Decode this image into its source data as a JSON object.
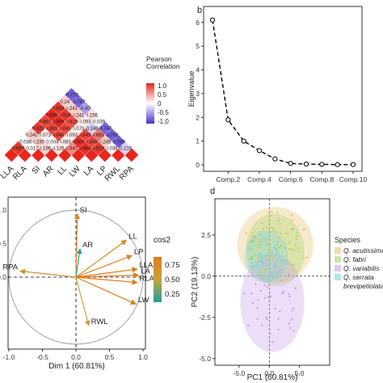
{
  "panel_labels": {
    "b": "b",
    "d": "d"
  },
  "chart_data": [
    {
      "type": "heatmap",
      "variables": [
        "LLA",
        "RLA",
        "SI",
        "AR",
        "LL",
        "LW",
        "LA",
        "LP",
        "RWL",
        "RPA"
      ],
      "legend": {
        "title": "Pearson\nCorrelation",
        "ticks": [
          "1.0",
          "0.5",
          "0",
          "-0.5",
          "-1.0"
        ],
        "colors": {
          "pos": "#e8261c",
          "mid": "#ffffff",
          "neg": "#4a2fd0"
        }
      },
      "cells": [
        {
          "row": "RPA",
          "col": "RWL",
          "label": "-0.219",
          "value": -0.219
        },
        {
          "row": "RPA",
          "col": "LP",
          "label": "-0.789",
          "value": -0.789
        },
        {
          "row": "RPA",
          "col": "LA",
          "label": "-0.762",
          "value": -0.762
        },
        {
          "row": "RPA",
          "col": "LW",
          "label": "-0.747",
          "value": -0.747
        },
        {
          "row": "RPA",
          "col": "LL",
          "label": "-0.039",
          "value": -0.039
        },
        {
          "row": "RPA",
          "col": "AR",
          "label": "0.156",
          "value": 0.156
        },
        {
          "row": "RPA",
          "col": "SI",
          "label": "-0.47",
          "value": -0.47
        },
        {
          "row": "RPA",
          "col": "RLA",
          "label": "-0.747",
          "value": -0.747
        },
        {
          "row": "RPA",
          "col": "LLA",
          "label": "-0.773",
          "value": -0.773
        },
        {
          "row": "RWL",
          "col": "LP",
          "label": "0.038",
          "value": 0.038
        },
        {
          "row": "RWL",
          "col": "LA",
          "label": "0.245",
          "value": 0.245
        },
        {
          "row": "RWL",
          "col": "LW",
          "label": "0.661",
          "value": 0.661
        },
        {
          "row": "RWL",
          "col": "LL",
          "label": "-0.249",
          "value": -0.249
        },
        {
          "row": "RWL",
          "col": "AR",
          "label": "0.093",
          "value": 0.093
        },
        {
          "row": "RWL",
          "col": "SI",
          "label": "0.241",
          "value": 0.241
        },
        {
          "row": "RWL",
          "col": "RLA",
          "label": "0.241",
          "value": 0.241
        },
        {
          "row": "RWL",
          "col": "LLA",
          "label": "0.24",
          "value": 0.24
        },
        {
          "row": "LP",
          "col": "LA",
          "label": "0.919",
          "value": 0.919
        },
        {
          "row": "LP",
          "col": "LW",
          "label": "0.849",
          "value": 0.849
        },
        {
          "row": "LP",
          "col": "LL",
          "label": "0.843",
          "value": 0.843
        },
        {
          "row": "LP",
          "col": "AR",
          "label": "0.073",
          "value": 0.073
        },
        {
          "row": "LP",
          "col": "SI",
          "label": "0.815",
          "value": 0.815
        },
        {
          "row": "LP",
          "col": "RLA",
          "label": "0.919",
          "value": 0.919
        },
        {
          "row": "LP",
          "col": "LLA",
          "label": "0.919",
          "value": 0.919
        },
        {
          "row": "LA",
          "col": "LW",
          "label": "0.964",
          "value": 0.964
        },
        {
          "row": "LA",
          "col": "LL",
          "label": "0.964",
          "value": 0.964
        },
        {
          "row": "LA",
          "col": "AR",
          "label": "0.093",
          "value": 0.093
        },
        {
          "row": "LA",
          "col": "SI",
          "label": "0.843",
          "value": 0.843
        },
        {
          "row": "LA",
          "col": "RLA",
          "label": "0.999",
          "value": 0.999
        },
        {
          "row": "LA",
          "col": "LLA",
          "label": "0.999",
          "value": 0.999
        },
        {
          "row": "LW",
          "col": "LL",
          "label": "0.547",
          "value": 0.547
        },
        {
          "row": "LW",
          "col": "AR",
          "label": "0.083",
          "value": 0.083
        },
        {
          "row": "LW",
          "col": "SI",
          "label": "0.845",
          "value": 0.845
        },
        {
          "row": "LW",
          "col": "RLA",
          "label": "0.861",
          "value": 0.861
        },
        {
          "row": "LW",
          "col": "LLA",
          "label": "0.861",
          "value": 0.861
        },
        {
          "row": "LL",
          "col": "AR",
          "label": "0.126",
          "value": 0.126
        },
        {
          "row": "LL",
          "col": "SI",
          "label": "-0.004",
          "value": -0.004
        },
        {
          "row": "LL",
          "col": "RLA",
          "label": "0.073",
          "value": 0.073
        },
        {
          "row": "LL",
          "col": "LLA",
          "label": "0.923",
          "value": 0.923
        },
        {
          "row": "AR",
          "col": "SI",
          "label": "0.196",
          "value": 0.196
        },
        {
          "row": "AR",
          "col": "RLA",
          "label": "0.235",
          "value": 0.235
        },
        {
          "row": "AR",
          "col": "LLA",
          "label": "0.241",
          "value": 0.241
        },
        {
          "row": "SI",
          "col": "RLA",
          "label": "-0.017",
          "value": -0.017
        },
        {
          "row": "SI",
          "col": "LLA",
          "label": "-0.036",
          "value": -0.036
        },
        {
          "row": "RLA",
          "col": "LLA",
          "label": "0.937",
          "value": 0.937
        }
      ]
    },
    {
      "type": "line",
      "ylabel": "Eigenvalue",
      "x": [
        1,
        2,
        3,
        4,
        5,
        6,
        7,
        8,
        9,
        10
      ],
      "values": [
        6.1,
        1.9,
        1.0,
        0.6,
        0.25,
        0.06,
        0.03,
        0.02,
        0.01,
        0.01
      ],
      "xticks": [
        "Comp.2",
        "Comp.4",
        "Comp.6",
        "Comp.8",
        "Comp.10"
      ],
      "yticks": [
        "0",
        "1",
        "2",
        "3",
        "4",
        "5",
        "6"
      ],
      "ylim": [
        0,
        6.4
      ]
    },
    {
      "type": "scatter",
      "xlabel": "Dim 1 (60.81%)",
      "xticks": [
        "-1.0",
        "-0.5",
        "0.0",
        "0.5",
        "1.0"
      ],
      "yticks": [
        "1.0",
        "0.5",
        "0.0"
      ],
      "legend_title": "cos2",
      "legend_ticks": [
        "0.75",
        "0.50",
        "0.25"
      ],
      "vectors": [
        {
          "label": "SI",
          "x": 0.02,
          "y": 0.94,
          "cos2": 0.82
        },
        {
          "label": "AR",
          "x": 0.06,
          "y": 0.42,
          "cos2": 0.18
        },
        {
          "label": "LL",
          "x": 0.75,
          "y": 0.55,
          "cos2": 0.82
        },
        {
          "label": "LP",
          "x": 0.83,
          "y": 0.32,
          "cos2": 0.88
        },
        {
          "label": "LLA",
          "x": 0.91,
          "y": 0.12,
          "cos2": 0.96
        },
        {
          "label": "LA",
          "x": 0.93,
          "y": 0.03,
          "cos2": 0.97
        },
        {
          "label": "RLA",
          "x": 0.91,
          "y": -0.08,
          "cos2": 0.96
        },
        {
          "label": "LW",
          "x": 0.89,
          "y": -0.4,
          "cos2": 0.91
        },
        {
          "label": "RPA",
          "x": -0.83,
          "y": 0.09,
          "cos2": 0.7
        },
        {
          "label": "RWL",
          "x": 0.19,
          "y": -0.72,
          "cos2": 0.55
        }
      ]
    },
    {
      "type": "scatter",
      "xlabel": "PC1 (60.81%)",
      "ylabel": "PC2 (19.13%)",
      "xticks": [
        "-5.0",
        "0.0",
        "5.0"
      ],
      "yticks": [
        "2.5",
        "0.0",
        "-2.5",
        "-5.0"
      ],
      "xlim": [
        -9,
        10
      ],
      "ylim": [
        -5.4,
        4.7
      ],
      "legend_title": "Species",
      "series": [
        {
          "name": "Q. acutissima",
          "color": "#e7c46c",
          "ellipse": {
            "cx": 1.0,
            "cy": 1.9,
            "rx": 6.3,
            "ry": 2.3,
            "angle": -8
          }
        },
        {
          "name": "Q. fabri",
          "color": "#a6d56a",
          "ellipse": {
            "cx": 1.0,
            "cy": 1.6,
            "rx": 4.8,
            "ry": 2.2,
            "angle": -6
          }
        },
        {
          "name": "Q. variabilis",
          "color": "#c9a0e8",
          "ellipse": {
            "cx": 0.5,
            "cy": -1.6,
            "rx": 5.3,
            "ry": 3.0,
            "angle": 0
          }
        },
        {
          "name": "Q. serrata var. brevipetiolata",
          "color": "#7fd4d9",
          "ellipse": {
            "cx": -0.5,
            "cy": 1.2,
            "rx": 3.6,
            "ry": 1.6,
            "angle": 0
          }
        }
      ],
      "legend_lines": [
        "Q. acutissima",
        "Q. fabri",
        "Q. variabilis",
        "Q. serrata",
        "brevipetiolata"
      ]
    }
  ]
}
